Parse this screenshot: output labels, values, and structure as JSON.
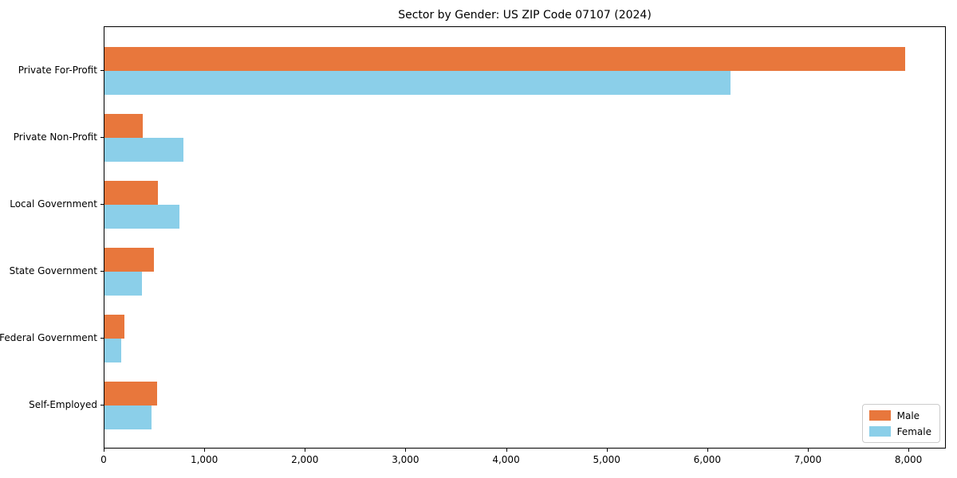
{
  "title": "Sector by Gender: US ZIP Code 07107 (2024)",
  "chart_data": {
    "type": "bar",
    "orientation": "horizontal",
    "title": "Sector by Gender: US ZIP Code 07107 (2024)",
    "categories": [
      "Private For-Profit",
      "Private Non-Profit",
      "Local Government",
      "State Government",
      "Federal Government",
      "Self-Employed"
    ],
    "series": [
      {
        "name": "Male",
        "color": "#e8773c",
        "values": [
          7960,
          380,
          530,
          490,
          200,
          520
        ]
      },
      {
        "name": "Female",
        "color": "#8bcfe9",
        "values": [
          6220,
          785,
          745,
          370,
          170,
          465
        ]
      }
    ],
    "xlabel": "",
    "ylabel": "",
    "xlim": [
      0,
      8372
    ],
    "xticks": [
      0,
      1000,
      2000,
      3000,
      4000,
      5000,
      6000,
      7000,
      8000
    ],
    "xtick_labels": [
      "0",
      "1,000",
      "2,000",
      "3,000",
      "4,000",
      "5,000",
      "6,000",
      "7,000",
      "8,000"
    ],
    "grid": false,
    "legend_position": "lower right",
    "legend_labels": [
      "Male",
      "Female"
    ]
  }
}
